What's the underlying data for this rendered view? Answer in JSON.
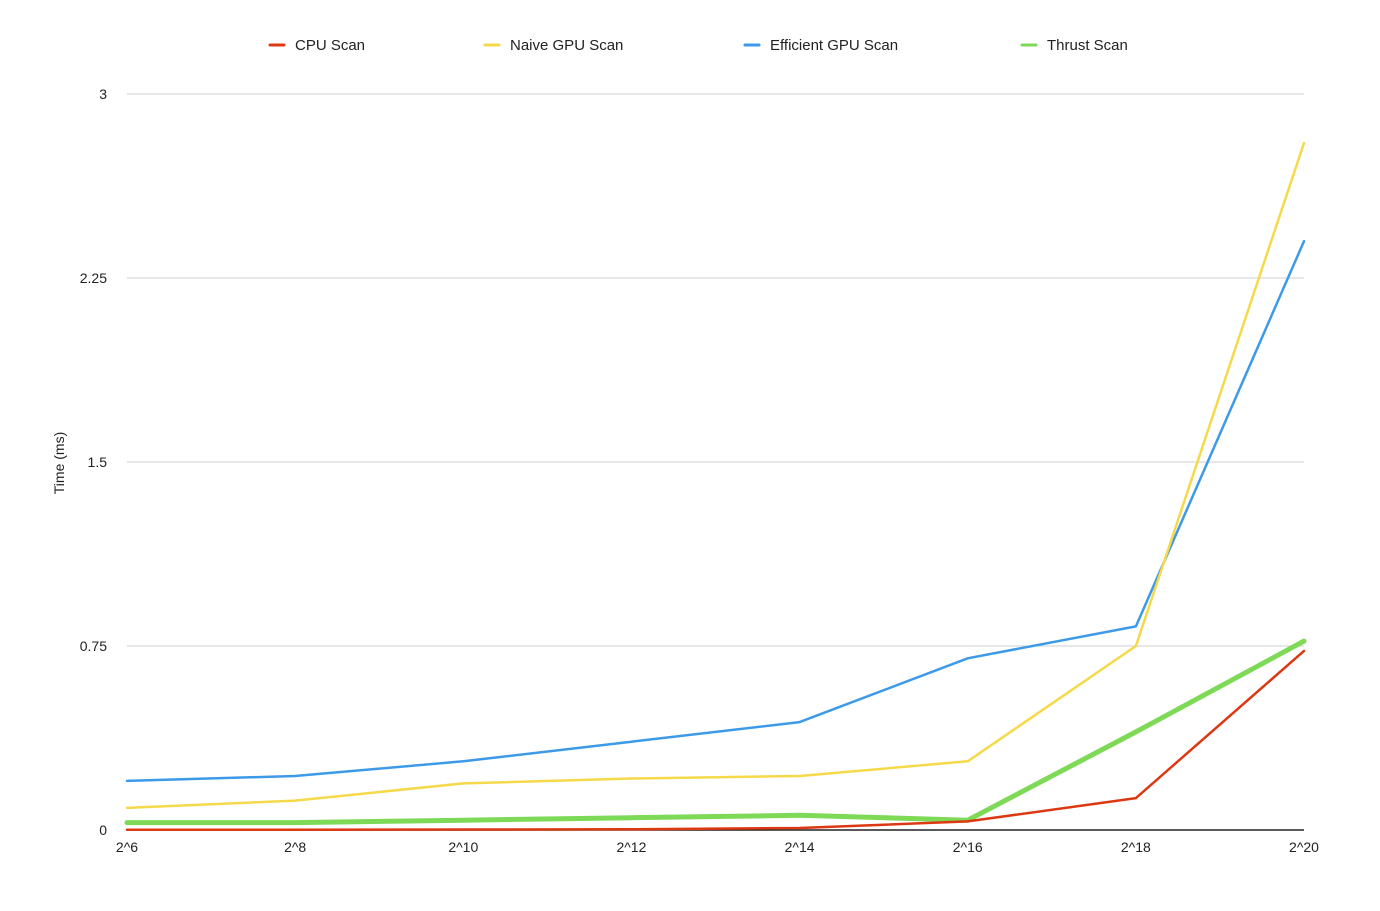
{
  "chart_data": {
    "type": "line",
    "title": "",
    "xlabel": "",
    "ylabel": "Time (ms)",
    "categories": [
      "2^6",
      "2^8",
      "2^10",
      "2^12",
      "2^14",
      "2^16",
      "2^18",
      "2^20"
    ],
    "ylim": [
      0,
      3
    ],
    "yticks": [
      "0",
      "0.75",
      "1.5",
      "2.25",
      "3"
    ],
    "ytick_values": [
      0,
      0.75,
      1.5,
      2.25,
      3
    ],
    "grid": true,
    "legend_position": "top",
    "series": [
      {
        "name": "CPU Scan",
        "color": "#dc3912",
        "values": [
          0.001,
          0.001,
          0.002,
          0.003,
          0.008,
          0.035,
          0.13,
          0.73
        ]
      },
      {
        "name": "Naive GPU Scan",
        "color": "#f6d94a",
        "values": [
          0.09,
          0.12,
          0.19,
          0.21,
          0.22,
          0.28,
          0.75,
          2.8
        ]
      },
      {
        "name": "Efficient GPU Scan",
        "color": "#3d9ae8",
        "values": [
          0.2,
          0.22,
          0.28,
          0.36,
          0.44,
          0.7,
          0.83,
          2.4
        ]
      },
      {
        "name": "Thrust Scan",
        "color": "#7ed957",
        "values": [
          0.03,
          0.03,
          0.04,
          0.05,
          0.06,
          0.04,
          0.4,
          0.77
        ]
      }
    ]
  }
}
